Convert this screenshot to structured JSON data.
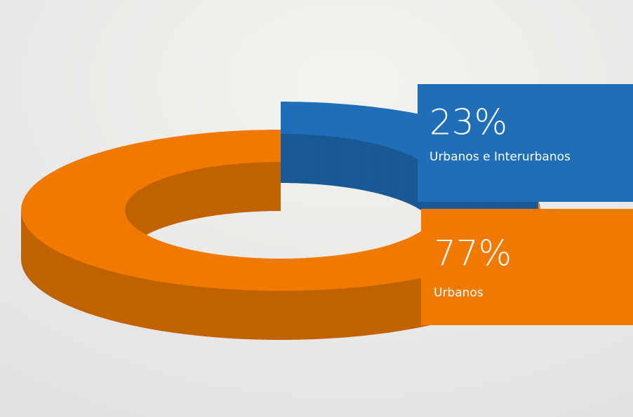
{
  "chart_data": {
    "type": "pie",
    "categories": [
      "Urbanos e Interurbanos",
      "Urbanos"
    ],
    "values": [
      23,
      77
    ],
    "value_labels": [
      "23%",
      "77%"
    ],
    "colors": [
      "#1f6fb8",
      "#f07a00"
    ]
  }
}
